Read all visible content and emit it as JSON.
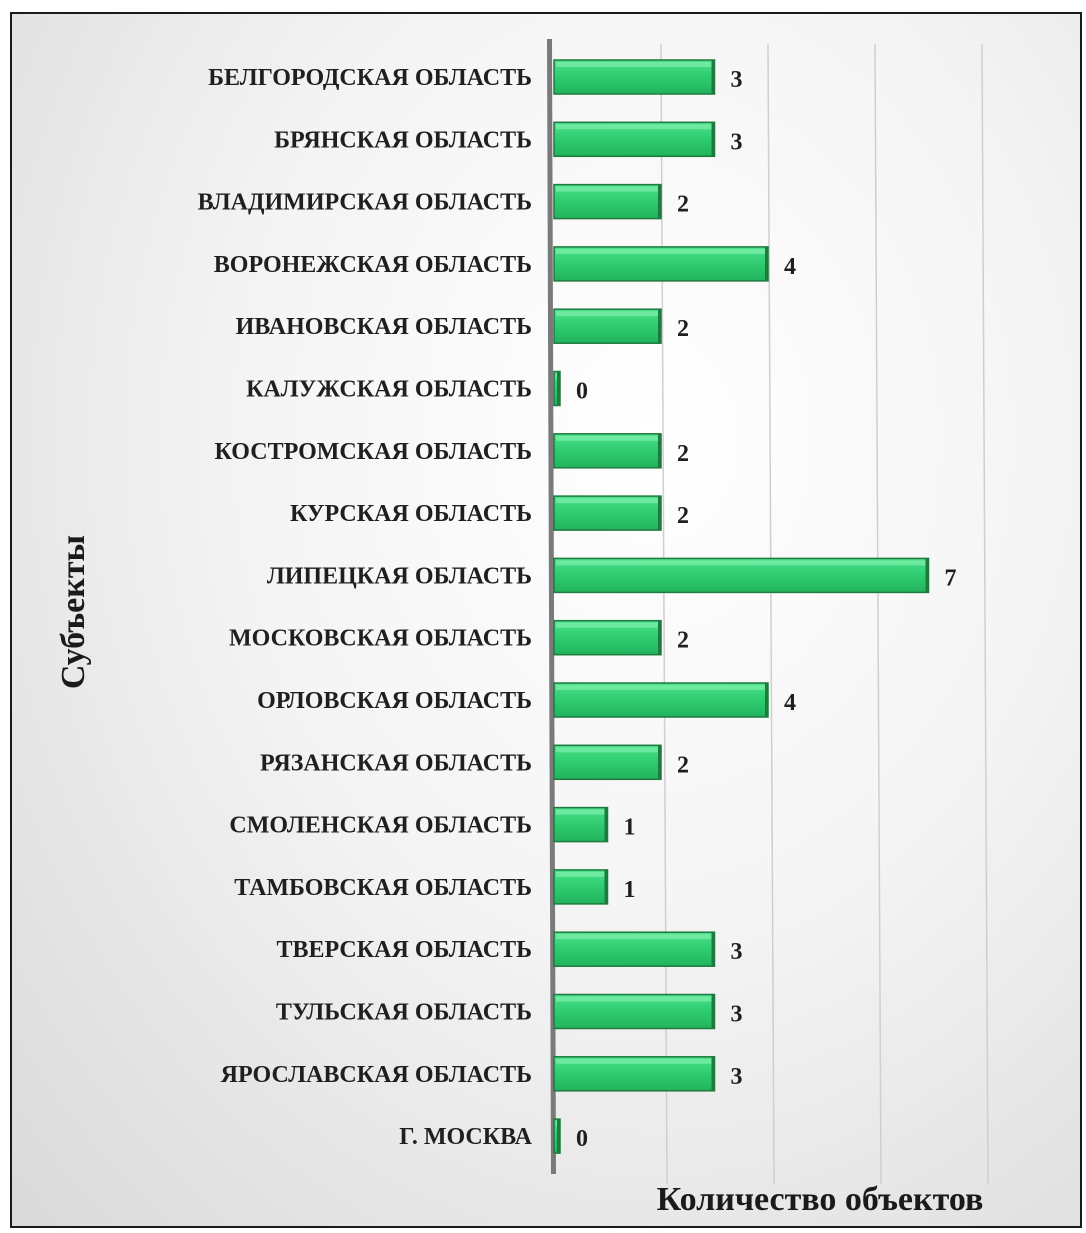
{
  "chart_data": {
    "type": "bar",
    "orientation": "horizontal",
    "xlabel": "Количество объектов",
    "ylabel": "Субъекты",
    "xlim": [
      0,
      10
    ],
    "grid": true,
    "legend": "none",
    "bar_color": "#2ecc6f",
    "bar_edge_color": "#1e7a3e",
    "categories": [
      "БЕЛГОРОДСКАЯ ОБЛАСТЬ",
      "БРЯНСКАЯ ОБЛАСТЬ",
      "ВЛАДИМИРСКАЯ ОБЛАСТЬ",
      "ВОРОНЕЖСКАЯ ОБЛАСТЬ",
      "ИВАНОВСКАЯ ОБЛАСТЬ",
      "КАЛУЖСКАЯ ОБЛАСТЬ",
      "КОСТРОМСКАЯ ОБЛАСТЬ",
      "КУРСКАЯ ОБЛАСТЬ",
      "ЛИПЕЦКАЯ ОБЛАСТЬ",
      "МОСКОВСКАЯ ОБЛАСТЬ",
      "ОРЛОВСКАЯ ОБЛАСТЬ",
      "РЯЗАНСКАЯ ОБЛАСТЬ",
      "СМОЛЕНСКАЯ ОБЛАСТЬ",
      "ТАМБОВСКАЯ ОБЛАСТЬ",
      "ТВЕРСКАЯ ОБЛАСТЬ",
      "ТУЛЬСКАЯ ОБЛАСТЬ",
      "ЯРОСЛАВСКАЯ ОБЛАСТЬ",
      "Г. МОСКВА"
    ],
    "values": [
      3,
      3,
      2,
      4,
      2,
      0,
      2,
      2,
      7,
      2,
      4,
      2,
      1,
      1,
      3,
      3,
      3,
      0
    ]
  }
}
